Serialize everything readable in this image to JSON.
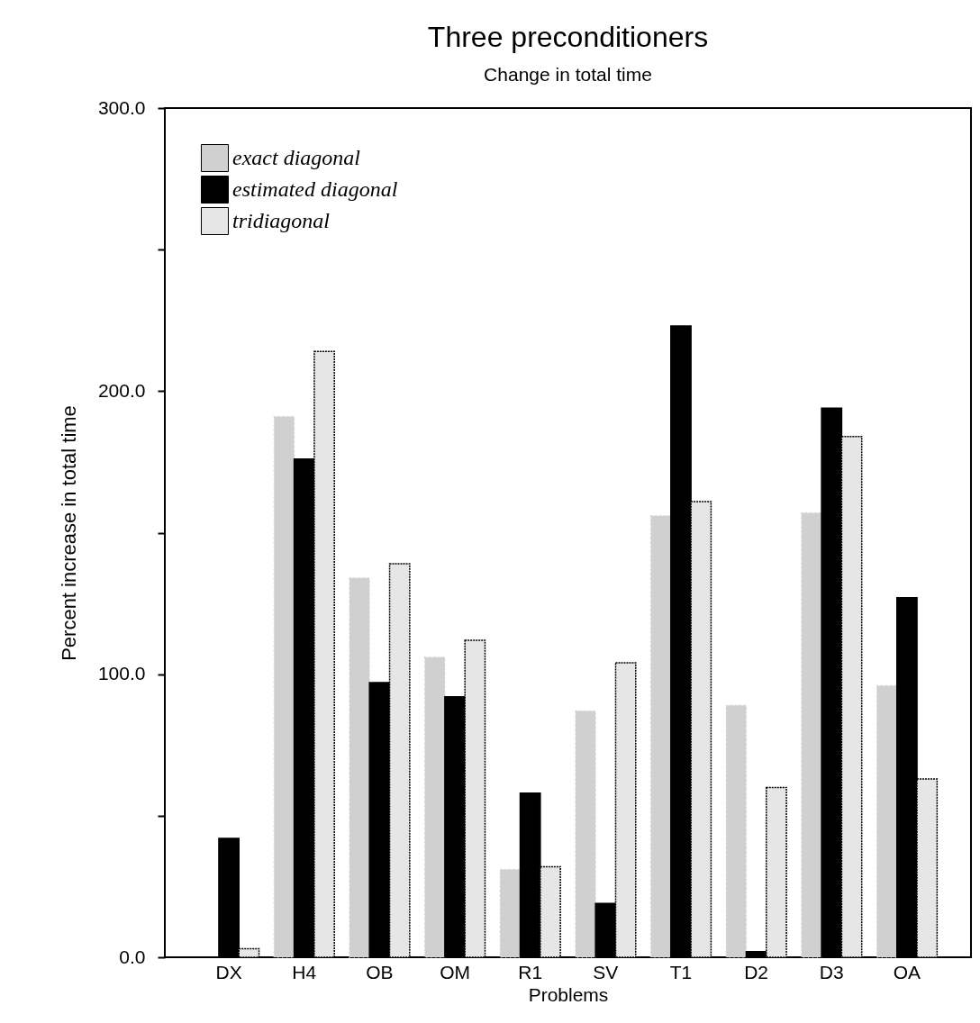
{
  "chart_data": {
    "type": "bar",
    "title": "Three preconditioners",
    "subtitle": "Change in total time",
    "xlabel": "Problems",
    "ylabel": "Percent increase in total time",
    "categories": [
      "DX",
      "H4",
      "OB",
      "OM",
      "R1",
      "SV",
      "T1",
      "D2",
      "D3",
      "OA"
    ],
    "series": [
      {
        "name": "exact diagonal",
        "color": "#d0d0d0",
        "values": [
          null,
          191,
          134,
          106,
          31,
          87,
          156,
          89,
          157,
          96
        ]
      },
      {
        "name": "estimated diagonal",
        "color": "#000000",
        "values": [
          42,
          176,
          97,
          92,
          58,
          19,
          223,
          2,
          194,
          127
        ]
      },
      {
        "name": "tridiagonal",
        "color": "#e6e6e6",
        "values": [
          3,
          214,
          139,
          112,
          32,
          104,
          161,
          60,
          184,
          63
        ]
      }
    ],
    "ylim": [
      0,
      300
    ],
    "yticks": [
      {
        "value": 0,
        "label": "0.0"
      },
      {
        "value": 50,
        "label": null
      },
      {
        "value": 100,
        "label": "100.0"
      },
      {
        "value": 150,
        "label": null
      },
      {
        "value": 200,
        "label": "200.0"
      },
      {
        "value": 250,
        "label": null
      },
      {
        "value": 300,
        "label": "300.0"
      }
    ],
    "legend": "top left",
    "grid": false
  }
}
